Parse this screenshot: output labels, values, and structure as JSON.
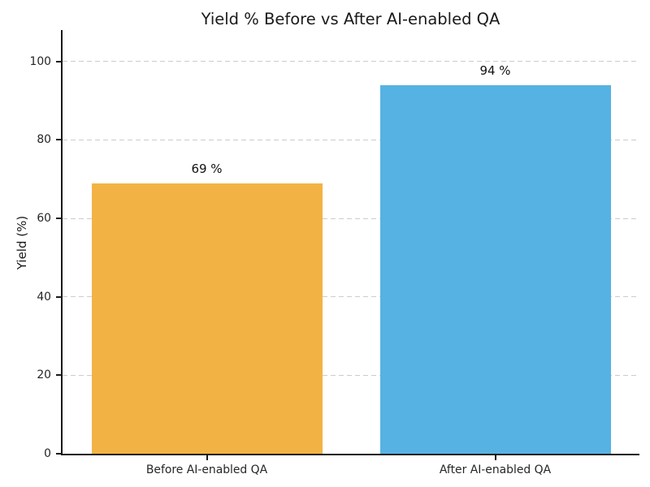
{
  "chart_data": {
    "type": "bar",
    "title": "Yield % Before vs After AI-enabled QA",
    "categories": [
      "Before AI-enabled QA",
      "After AI-enabled QA"
    ],
    "values": [
      69,
      94
    ],
    "data_labels": [
      "69 %",
      "94 %"
    ],
    "bar_colors": [
      "#F2B344",
      "#56B2E2"
    ],
    "xlabel": "",
    "ylabel": "Yield (%)",
    "ylim": [
      0,
      108
    ],
    "yticks": [
      0,
      20,
      40,
      60,
      80,
      100
    ],
    "grid": "horizontal-dashed",
    "gridline_color": "#cccccc",
    "axis_color": "#1a1a1a",
    "text_color": "#262626",
    "background": "#ffffff",
    "legend": "none",
    "bar_width_fraction": 0.8
  }
}
